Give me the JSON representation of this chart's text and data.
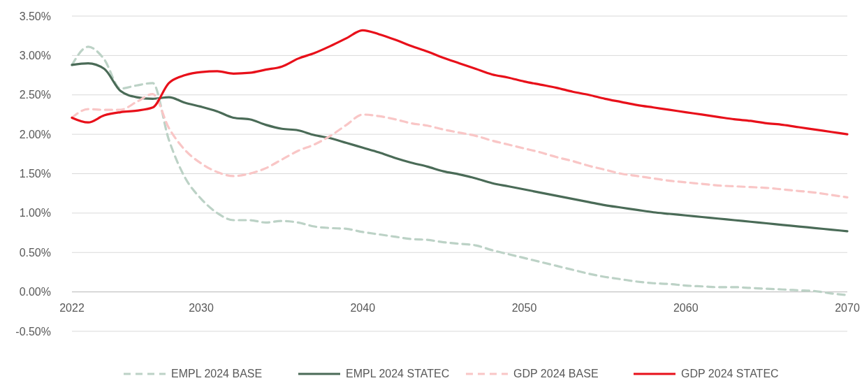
{
  "chart_data": {
    "type": "line",
    "x": [
      2022,
      2023,
      2024,
      2025,
      2026,
      2027,
      2028,
      2029,
      2030,
      2031,
      2032,
      2033,
      2034,
      2035,
      2036,
      2037,
      2038,
      2039,
      2040,
      2041,
      2042,
      2043,
      2044,
      2045,
      2046,
      2047,
      2048,
      2049,
      2050,
      2051,
      2052,
      2053,
      2054,
      2055,
      2056,
      2057,
      2058,
      2059,
      2060,
      2061,
      2062,
      2063,
      2064,
      2065,
      2066,
      2067,
      2068,
      2069,
      2070
    ],
    "xlim": [
      2022,
      2070
    ],
    "xticks": [
      2022,
      2030,
      2040,
      2050,
      2060,
      2070
    ],
    "ylim": [
      -0.5,
      3.5
    ],
    "yticks": [
      {
        "value": -0.5,
        "label": "-0.50%"
      },
      {
        "value": 0,
        "label": "0.00%"
      },
      {
        "value": 0.5,
        "label": "0.50%"
      },
      {
        "value": 1,
        "label": "1.00%"
      },
      {
        "value": 1.5,
        "label": "1.50%"
      },
      {
        "value": 2,
        "label": "2.00%"
      },
      {
        "value": 2.5,
        "label": "2.50%"
      },
      {
        "value": 3,
        "label": "3.00%"
      },
      {
        "value": 3.5,
        "label": "3.50%"
      }
    ],
    "grid": "y",
    "legend": "bottom",
    "series": [
      {
        "name": "EMPL 2024 BASE",
        "color": "#bcd2c6",
        "line_style": "dashed",
        "values": [
          2.88,
          3.11,
          2.95,
          2.58,
          2.62,
          2.65,
          1.93,
          1.45,
          1.18,
          1.0,
          0.91,
          0.91,
          0.88,
          0.9,
          0.88,
          0.83,
          0.81,
          0.8,
          0.76,
          0.73,
          0.7,
          0.67,
          0.66,
          0.63,
          0.61,
          0.59,
          0.53,
          0.48,
          0.43,
          0.38,
          0.33,
          0.28,
          0.23,
          0.19,
          0.16,
          0.13,
          0.11,
          0.1,
          0.08,
          0.07,
          0.06,
          0.06,
          0.05,
          0.04,
          0.03,
          0.02,
          0.01,
          -0.02,
          -0.04
        ]
      },
      {
        "name": "EMPL 2024 STATEC",
        "color": "#4a6b57",
        "line_style": "solid",
        "values": [
          2.88,
          2.9,
          2.83,
          2.55,
          2.47,
          2.45,
          2.47,
          2.4,
          2.35,
          2.29,
          2.21,
          2.19,
          2.12,
          2.07,
          2.05,
          1.99,
          1.95,
          1.89,
          1.83,
          1.77,
          1.7,
          1.64,
          1.59,
          1.53,
          1.49,
          1.44,
          1.38,
          1.34,
          1.3,
          1.26,
          1.22,
          1.18,
          1.14,
          1.1,
          1.07,
          1.04,
          1.01,
          0.99,
          0.97,
          0.95,
          0.93,
          0.91,
          0.89,
          0.87,
          0.85,
          0.83,
          0.81,
          0.79,
          0.77
        ]
      },
      {
        "name": "GDP 2024 BASE",
        "color": "#f9c6c6",
        "line_style": "dashed",
        "values": [
          2.21,
          2.32,
          2.31,
          2.31,
          2.41,
          2.51,
          2.08,
          1.8,
          1.63,
          1.52,
          1.47,
          1.5,
          1.57,
          1.68,
          1.79,
          1.87,
          1.98,
          2.12,
          2.25,
          2.23,
          2.19,
          2.14,
          2.11,
          2.06,
          2.02,
          1.98,
          1.92,
          1.87,
          1.82,
          1.77,
          1.71,
          1.66,
          1.6,
          1.55,
          1.5,
          1.47,
          1.44,
          1.41,
          1.39,
          1.37,
          1.35,
          1.34,
          1.33,
          1.32,
          1.3,
          1.28,
          1.26,
          1.23,
          1.2
        ]
      },
      {
        "name": "GDP 2024 STATEC",
        "color": "#e8101a",
        "line_style": "solid",
        "values": [
          2.21,
          2.15,
          2.24,
          2.28,
          2.3,
          2.34,
          2.65,
          2.75,
          2.79,
          2.8,
          2.77,
          2.78,
          2.82,
          2.86,
          2.96,
          3.03,
          3.12,
          3.22,
          3.32,
          3.27,
          3.2,
          3.12,
          3.05,
          2.97,
          2.9,
          2.83,
          2.76,
          2.72,
          2.67,
          2.63,
          2.59,
          2.54,
          2.5,
          2.45,
          2.41,
          2.37,
          2.34,
          2.31,
          2.28,
          2.25,
          2.22,
          2.19,
          2.17,
          2.14,
          2.12,
          2.09,
          2.06,
          2.03,
          2.0
        ]
      }
    ]
  }
}
